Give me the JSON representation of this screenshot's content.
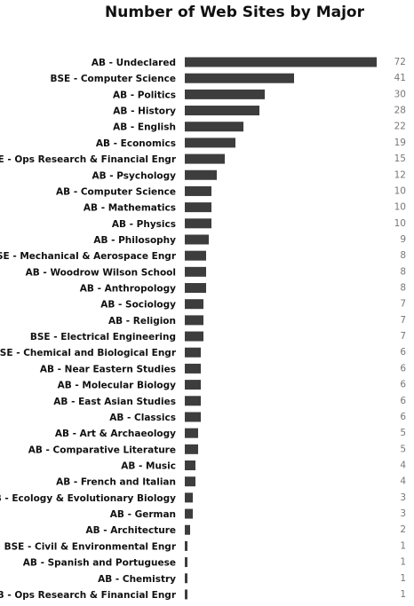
{
  "chart_data": {
    "type": "bar",
    "orientation": "horizontal",
    "title": "Number of Web Sites by Major",
    "xlabel": "",
    "ylabel": "",
    "xlim": [
      0,
      72
    ],
    "grid": false,
    "bar_color": "#3d3d3d",
    "categories": [
      "AB - Undeclared",
      "BSE - Computer Science",
      "AB - Politics",
      "AB - History",
      "AB - English",
      "AB - Economics",
      "BSE - Ops Research & Financial Engr",
      "AB - Psychology",
      "AB - Computer Science",
      "AB - Mathematics",
      "AB - Physics",
      "AB - Philosophy",
      "BSE - Mechanical & Aerospace Engr",
      "AB - Woodrow Wilson School",
      "AB - Anthropology",
      "AB - Sociology",
      "AB - Religion",
      "BSE - Electrical Engineering",
      "BSE - Chemical and Biological Engr",
      "AB - Near Eastern Studies",
      "AB - Molecular Biology",
      "AB - East Asian Studies",
      "AB - Classics",
      "AB - Art & Archaeology",
      "AB - Comparative Literature",
      "AB - Music",
      "AB - French and Italian",
      "AB - Ecology & Evolutionary Biology",
      "AB - German",
      "AB - Architecture",
      "BSE - Civil & Environmental Engr",
      "AB - Spanish and Portuguese",
      "AB - Chemistry",
      "AB - Ops Research & Financial Engr"
    ],
    "values": [
      72,
      41,
      30,
      28,
      22,
      19,
      15,
      12,
      10,
      10,
      10,
      9,
      8,
      8,
      8,
      7,
      7,
      7,
      6,
      6,
      6,
      6,
      6,
      5,
      5,
      4,
      4,
      3,
      3,
      2,
      1,
      1,
      1,
      1
    ]
  }
}
